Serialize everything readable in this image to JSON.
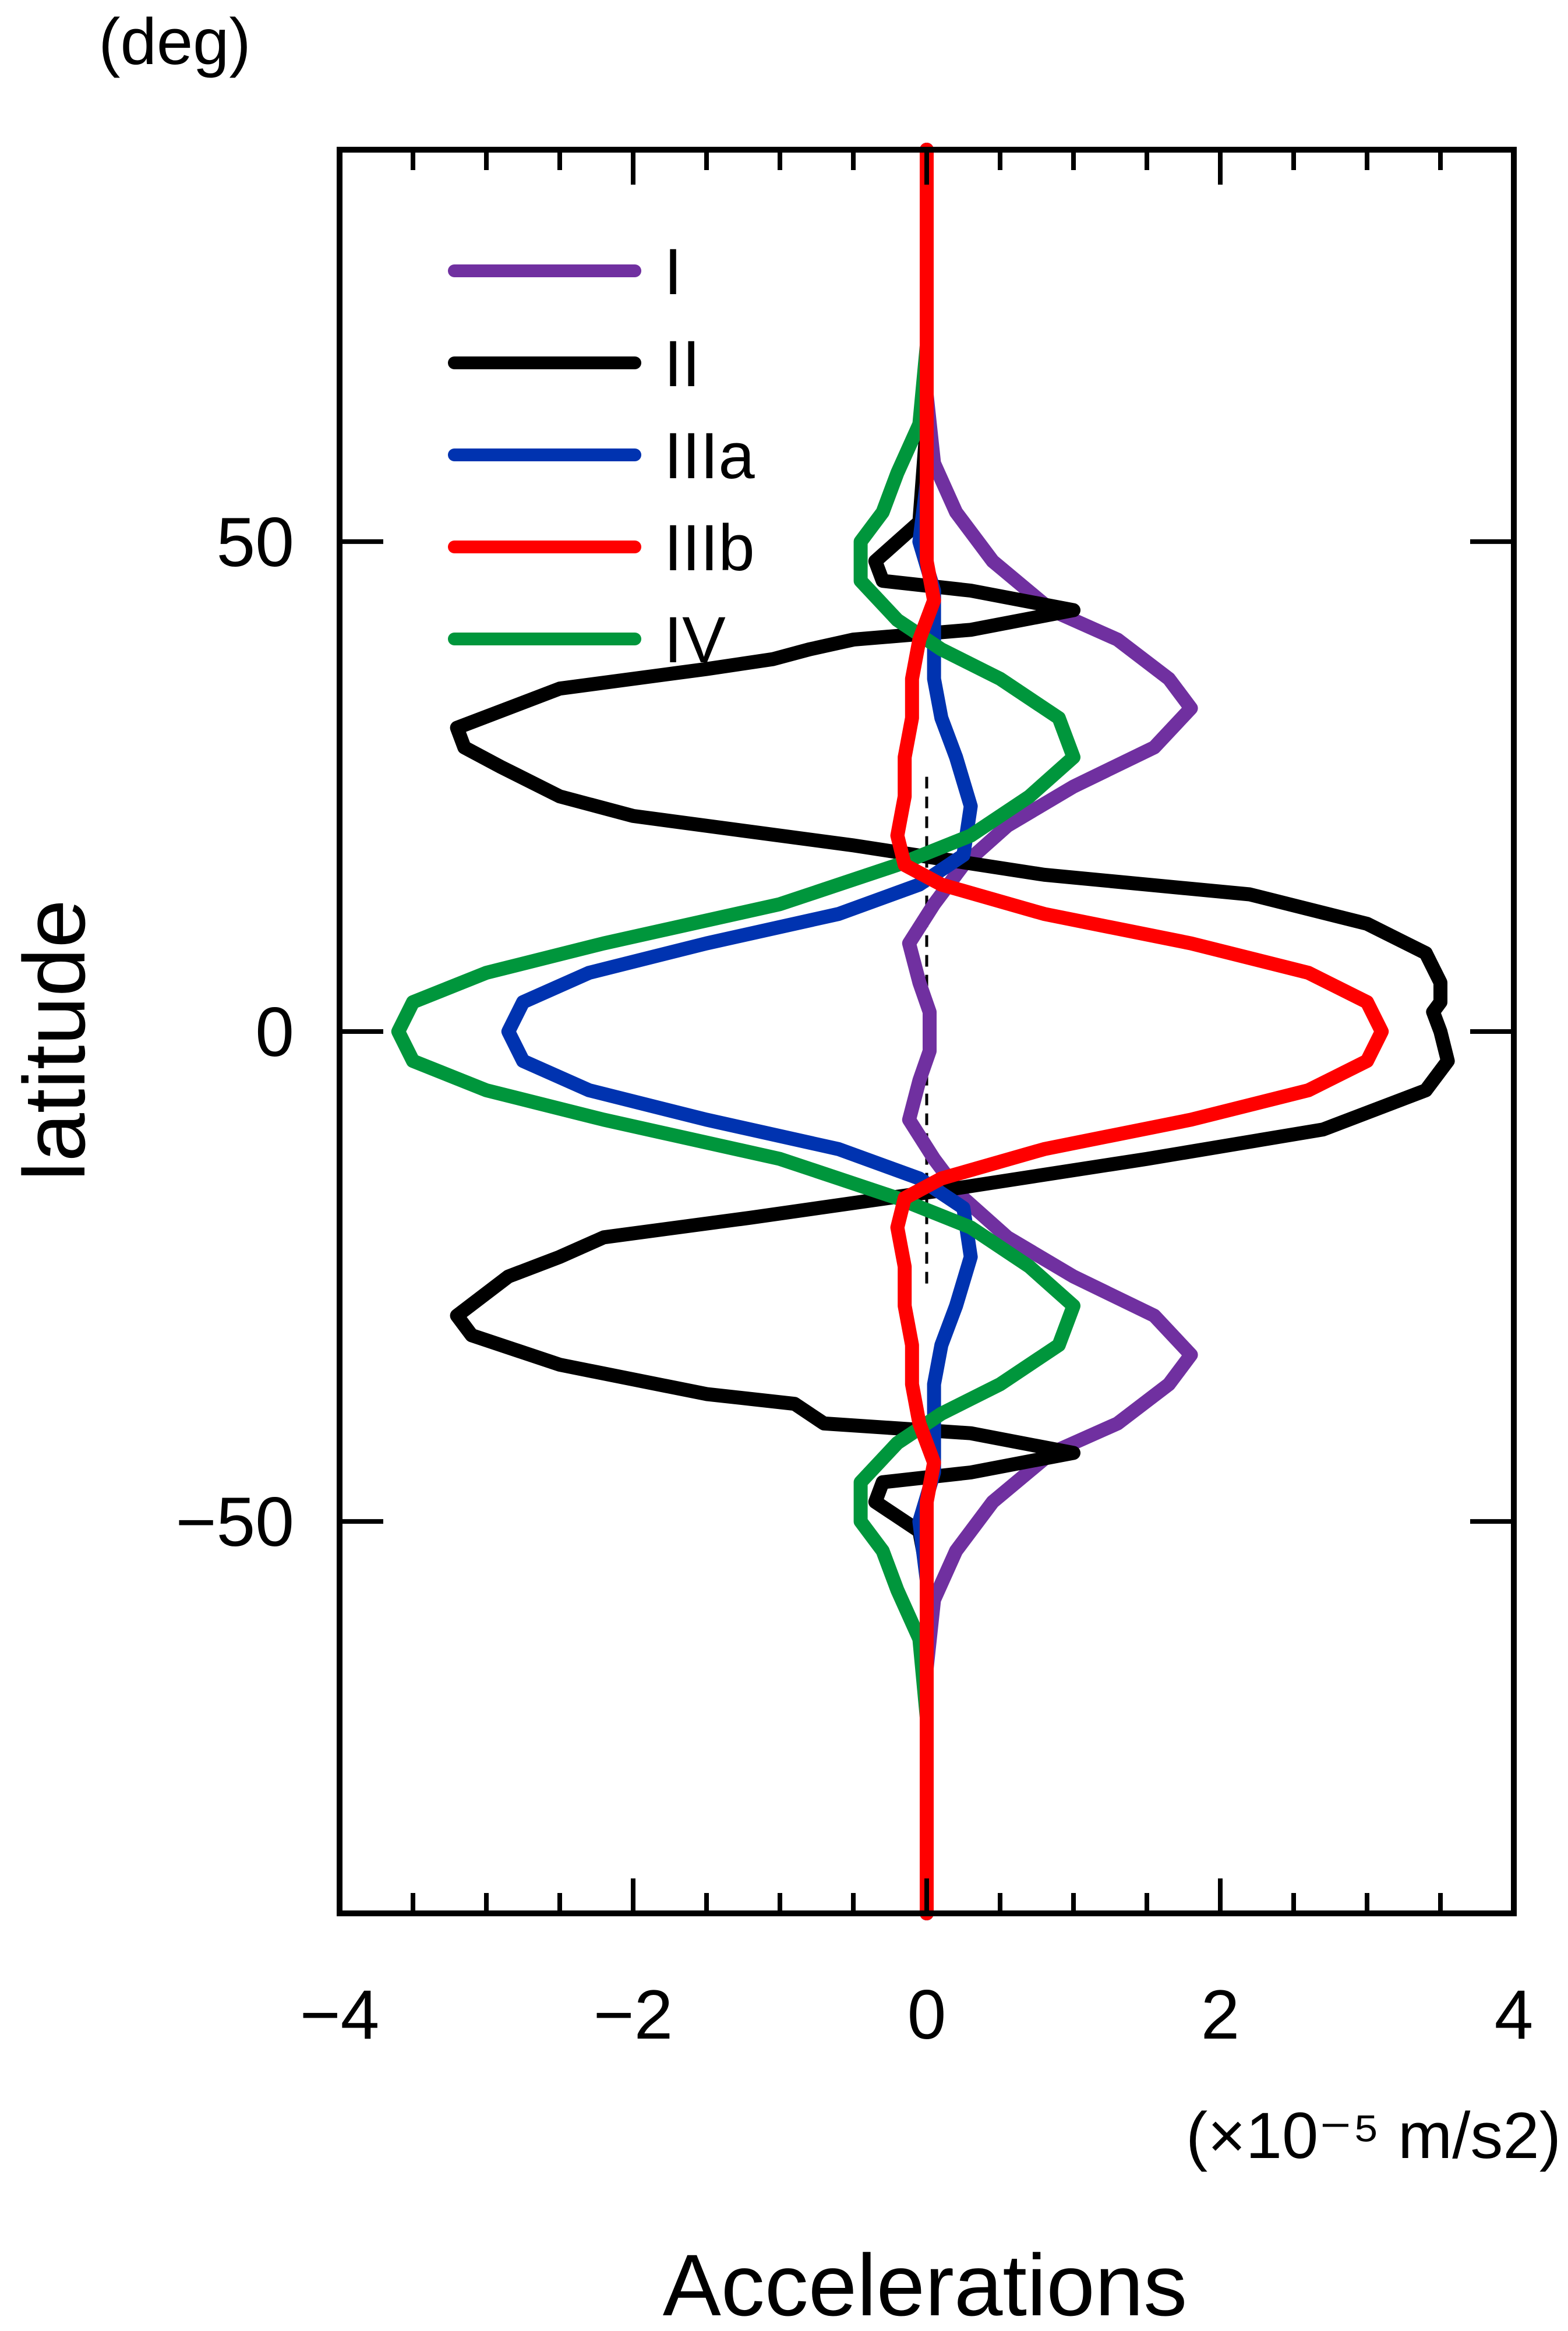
{
  "chart_data": {
    "type": "line",
    "orientation": "horizontal-profile",
    "ylabel": "latitude",
    "yunit": "(deg)",
    "xlabel": "Accelerations",
    "xunit": "(×10⁻⁵ m/s2)",
    "xlim": [
      -4,
      4
    ],
    "ylim": [
      -90,
      90
    ],
    "x_tick_labels": [
      "−4",
      "−2",
      "0",
      "2",
      "4"
    ],
    "x_tick_values": [
      -4,
      -2,
      0,
      2,
      4
    ],
    "y_tick_labels": [
      "50",
      "0",
      "−50"
    ],
    "y_tick_values": [
      50,
      0,
      -50
    ],
    "grid": false,
    "legend_position": "top-left",
    "zero_line": "dashed",
    "series": [
      {
        "name": "I",
        "color": "#7030a0",
        "points": [
          [
            0,
            90
          ],
          [
            0,
            80
          ],
          [
            0,
            65
          ],
          [
            0.05,
            58
          ],
          [
            0.2,
            53
          ],
          [
            0.45,
            48
          ],
          [
            0.85,
            43
          ],
          [
            1.3,
            40
          ],
          [
            1.65,
            36
          ],
          [
            1.8,
            33
          ],
          [
            1.55,
            29
          ],
          [
            1.0,
            25
          ],
          [
            0.55,
            21
          ],
          [
            0.25,
            17
          ],
          [
            0.05,
            13
          ],
          [
            -0.12,
            9
          ],
          [
            -0.05,
            5
          ],
          [
            0.02,
            2
          ],
          [
            0.02,
            -2
          ],
          [
            -0.05,
            -5
          ],
          [
            -0.12,
            -9
          ],
          [
            0.05,
            -13
          ],
          [
            0.25,
            -17
          ],
          [
            0.55,
            -21
          ],
          [
            1.0,
            -25
          ],
          [
            1.55,
            -29
          ],
          [
            1.8,
            -33
          ],
          [
            1.65,
            -36
          ],
          [
            1.3,
            -40
          ],
          [
            0.85,
            -43
          ],
          [
            0.45,
            -48
          ],
          [
            0.2,
            -53
          ],
          [
            0.05,
            -58
          ],
          [
            0,
            -65
          ],
          [
            0,
            -80
          ],
          [
            0,
            -90
          ]
        ]
      },
      {
        "name": "II",
        "color": "#000000",
        "points": [
          [
            0,
            90
          ],
          [
            0,
            80
          ],
          [
            0,
            62
          ],
          [
            -0.05,
            52
          ],
          [
            -0.35,
            48
          ],
          [
            -0.3,
            46
          ],
          [
            0.3,
            45
          ],
          [
            1.0,
            43
          ],
          [
            0.3,
            41
          ],
          [
            -0.5,
            40
          ],
          [
            -0.8,
            39
          ],
          [
            -1.05,
            38
          ],
          [
            -1.5,
            37
          ],
          [
            -2.5,
            35
          ],
          [
            -3.2,
            31
          ],
          [
            -3.15,
            29
          ],
          [
            -2.9,
            27
          ],
          [
            -2.5,
            24
          ],
          [
            -2.0,
            22
          ],
          [
            -0.5,
            19
          ],
          [
            0.8,
            16
          ],
          [
            2.2,
            14
          ],
          [
            3.0,
            11
          ],
          [
            3.4,
            8
          ],
          [
            3.5,
            5
          ],
          [
            3.5,
            3
          ],
          [
            3.45,
            2
          ],
          [
            3.5,
            0
          ],
          [
            3.55,
            -3
          ],
          [
            3.4,
            -6
          ],
          [
            2.7,
            -10
          ],
          [
            1.5,
            -13
          ],
          [
            0.2,
            -16
          ],
          [
            -1.2,
            -19
          ],
          [
            -2.2,
            -21
          ],
          [
            -2.5,
            -23
          ],
          [
            -2.85,
            -25
          ],
          [
            -3.2,
            -29
          ],
          [
            -3.1,
            -31
          ],
          [
            -2.5,
            -34
          ],
          [
            -1.5,
            -37
          ],
          [
            -0.9,
            -38
          ],
          [
            -0.7,
            -40
          ],
          [
            0.3,
            -41
          ],
          [
            1.0,
            -43
          ],
          [
            0.3,
            -45
          ],
          [
            -0.3,
            -46
          ],
          [
            -0.35,
            -48
          ],
          [
            -0.05,
            -51
          ],
          [
            0,
            -55
          ],
          [
            0,
            -70
          ],
          [
            0,
            -90
          ]
        ]
      },
      {
        "name": "IIIa",
        "color": "#0033b0",
        "points": [
          [
            0,
            90
          ],
          [
            0,
            70
          ],
          [
            0,
            56
          ],
          [
            -0.05,
            50
          ],
          [
            0.05,
            45
          ],
          [
            0.05,
            40
          ],
          [
            0.05,
            36
          ],
          [
            0.1,
            32
          ],
          [
            0.2,
            28
          ],
          [
            0.3,
            23
          ],
          [
            0.25,
            18
          ],
          [
            -0.05,
            15
          ],
          [
            -0.6,
            12
          ],
          [
            -1.5,
            9
          ],
          [
            -2.3,
            6
          ],
          [
            -2.75,
            3
          ],
          [
            -2.85,
            0
          ],
          [
            -2.75,
            -3
          ],
          [
            -2.3,
            -6
          ],
          [
            -1.5,
            -9
          ],
          [
            -0.6,
            -12
          ],
          [
            -0.05,
            -15
          ],
          [
            0.25,
            -18
          ],
          [
            0.3,
            -23
          ],
          [
            0.2,
            -28
          ],
          [
            0.1,
            -32
          ],
          [
            0.05,
            -36
          ],
          [
            0.05,
            -40
          ],
          [
            0.05,
            -45
          ],
          [
            -0.05,
            -50
          ],
          [
            0,
            -56
          ],
          [
            0,
            -70
          ],
          [
            0,
            -90
          ]
        ]
      },
      {
        "name": "IIIb",
        "color": "#ff0000",
        "points": [
          [
            0,
            90
          ],
          [
            0,
            70
          ],
          [
            0,
            56
          ],
          [
            0,
            48
          ],
          [
            0.05,
            44
          ],
          [
            -0.05,
            40
          ],
          [
            -0.1,
            36
          ],
          [
            -0.1,
            32
          ],
          [
            -0.15,
            28
          ],
          [
            -0.15,
            24
          ],
          [
            -0.2,
            20
          ],
          [
            -0.15,
            17
          ],
          [
            0.1,
            15
          ],
          [
            0.8,
            12
          ],
          [
            1.8,
            9
          ],
          [
            2.6,
            6
          ],
          [
            3.0,
            3
          ],
          [
            3.1,
            0
          ],
          [
            3.0,
            -3
          ],
          [
            2.6,
            -6
          ],
          [
            1.8,
            -9
          ],
          [
            0.8,
            -12
          ],
          [
            0.1,
            -15
          ],
          [
            -0.15,
            -17
          ],
          [
            -0.2,
            -20
          ],
          [
            -0.15,
            -24
          ],
          [
            -0.15,
            -28
          ],
          [
            -0.1,
            -32
          ],
          [
            -0.1,
            -36
          ],
          [
            -0.05,
            -40
          ],
          [
            0.05,
            -44
          ],
          [
            0,
            -48
          ],
          [
            0,
            -56
          ],
          [
            0,
            -70
          ],
          [
            0,
            -90
          ]
        ]
      },
      {
        "name": "IV",
        "color": "#00963c",
        "points": [
          [
            0,
            80
          ],
          [
            0,
            70
          ],
          [
            -0.05,
            62
          ],
          [
            -0.2,
            57
          ],
          [
            -0.3,
            53
          ],
          [
            -0.45,
            50
          ],
          [
            -0.45,
            46
          ],
          [
            -0.2,
            42
          ],
          [
            0.1,
            39
          ],
          [
            0.5,
            36
          ],
          [
            0.9,
            32
          ],
          [
            1.0,
            28
          ],
          [
            0.7,
            24
          ],
          [
            0.3,
            20
          ],
          [
            -0.2,
            17
          ],
          [
            -1.0,
            13
          ],
          [
            -2.2,
            9
          ],
          [
            -3.0,
            6
          ],
          [
            -3.5,
            3
          ],
          [
            -3.6,
            0
          ],
          [
            -3.5,
            -3
          ],
          [
            -3.0,
            -6
          ],
          [
            -2.2,
            -9
          ],
          [
            -1.0,
            -13
          ],
          [
            -0.2,
            -17
          ],
          [
            0.3,
            -20
          ],
          [
            0.7,
            -24
          ],
          [
            1.0,
            -28
          ],
          [
            0.9,
            -32
          ],
          [
            0.5,
            -36
          ],
          [
            0.1,
            -39
          ],
          [
            -0.2,
            -42
          ],
          [
            -0.45,
            -46
          ],
          [
            -0.45,
            -50
          ],
          [
            -0.3,
            -53
          ],
          [
            -0.2,
            -57
          ],
          [
            -0.05,
            -62
          ],
          [
            0,
            -70
          ],
          [
            0,
            -80
          ]
        ]
      }
    ]
  }
}
